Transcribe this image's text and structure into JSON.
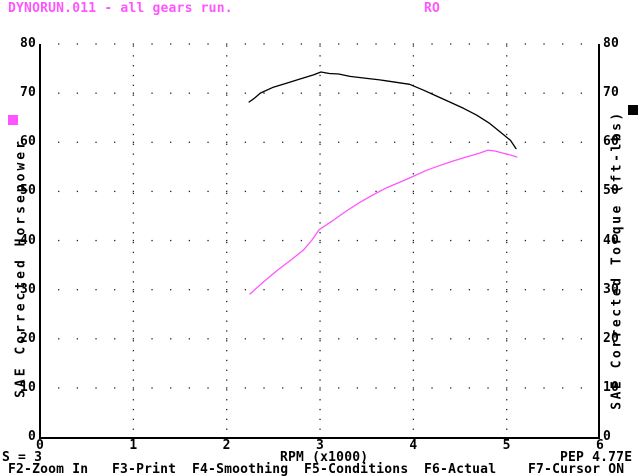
{
  "header": {
    "title": "DYNORUN.011 - all gears run.",
    "run_label": "RO"
  },
  "status": {
    "left": "S = 3",
    "right": "PEP 4.77E"
  },
  "fkeys": [
    "F2-Zoom In",
    "F3-Print",
    "F4-Smoothing",
    "F5-Conditions",
    "F6-Actual",
    "F7-Cursor ON"
  ],
  "colors": {
    "accent": "#ff55ff",
    "foreground": "#000000",
    "background": "#ffffff"
  },
  "chart_data": {
    "type": "line",
    "xlabel": "RPM (x1000)",
    "ylabel_left": "SAE Corrected Horsepower",
    "ylabel_right": "SAE Corrected Torque (ft-lbs)",
    "xlim": [
      0,
      6
    ],
    "ylim": [
      0,
      80
    ],
    "x_ticks": [
      0,
      1,
      2,
      3,
      4,
      5,
      6
    ],
    "y_ticks": [
      0,
      10,
      20,
      30,
      40,
      50,
      60,
      70,
      80
    ],
    "grid": "dotted",
    "legend": {
      "horsepower_marker_color": "#ff55ff",
      "torque_marker_color": "#000000"
    },
    "series": [
      {
        "name": "torque",
        "axis": "right",
        "color": "#000000",
        "points": [
          [
            2.24,
            68.2
          ],
          [
            2.3,
            69.0
          ],
          [
            2.36,
            70.0
          ],
          [
            2.5,
            71.2
          ],
          [
            2.64,
            72.0
          ],
          [
            2.79,
            72.9
          ],
          [
            2.93,
            73.7
          ],
          [
            3.01,
            74.3
          ],
          [
            3.1,
            74.0
          ],
          [
            3.2,
            73.9
          ],
          [
            3.32,
            73.4
          ],
          [
            3.5,
            73.0
          ],
          [
            3.64,
            72.7
          ],
          [
            3.78,
            72.3
          ],
          [
            3.96,
            71.8
          ],
          [
            4.11,
            70.6
          ],
          [
            4.25,
            69.4
          ],
          [
            4.39,
            68.2
          ],
          [
            4.54,
            66.9
          ],
          [
            4.68,
            65.5
          ],
          [
            4.82,
            63.8
          ],
          [
            4.93,
            62.1
          ],
          [
            5.04,
            60.4
          ],
          [
            5.1,
            58.7
          ]
        ]
      },
      {
        "name": "horsepower",
        "axis": "left",
        "color": "#ff55ff",
        "points": [
          [
            2.25,
            29.1
          ],
          [
            2.39,
            31.5
          ],
          [
            2.54,
            33.9
          ],
          [
            2.68,
            35.9
          ],
          [
            2.82,
            38.0
          ],
          [
            2.91,
            40.0
          ],
          [
            2.99,
            42.2
          ],
          [
            3.14,
            44.1
          ],
          [
            3.29,
            46.1
          ],
          [
            3.43,
            47.8
          ],
          [
            3.57,
            49.3
          ],
          [
            3.71,
            50.7
          ],
          [
            3.86,
            51.9
          ],
          [
            3.98,
            52.9
          ],
          [
            4.14,
            54.3
          ],
          [
            4.29,
            55.3
          ],
          [
            4.43,
            56.2
          ],
          [
            4.57,
            57.0
          ],
          [
            4.71,
            57.8
          ],
          [
            4.8,
            58.4
          ],
          [
            4.88,
            58.2
          ],
          [
            4.96,
            57.8
          ],
          [
            5.04,
            57.4
          ],
          [
            5.11,
            57.0
          ]
        ]
      }
    ]
  }
}
